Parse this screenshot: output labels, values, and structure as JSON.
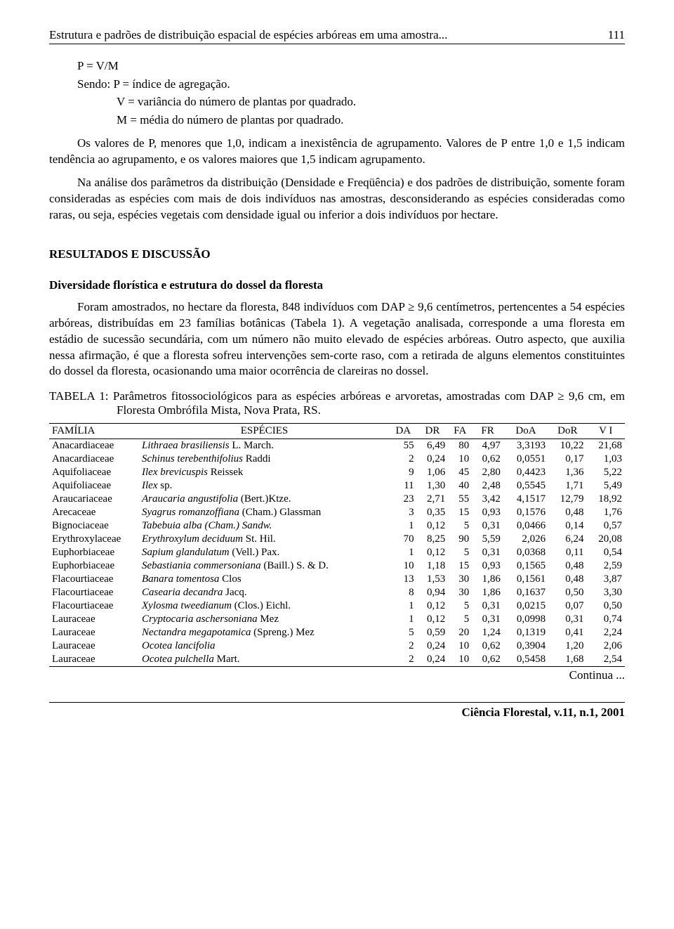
{
  "header": {
    "running_title": "Estrutura e padrões de distribuição espacial de espécies arbóreas em uma amostra...",
    "page_number": "111"
  },
  "formula": {
    "line1": "P = V/M",
    "line2": "Sendo: P = índice de agregação.",
    "line3": "V = variância do número de plantas por quadrado.",
    "line4": "M = média do número de plantas por quadrado."
  },
  "para1": "Os valores de P, menores que 1,0, indicam a inexistência de agrupamento. Valores de P entre 1,0 e 1,5 indicam tendência ao agrupamento, e os valores maiores que 1,5 indicam agrupamento.",
  "para2": "Na análise dos parâmetros da distribuição (Densidade e Freqüência) e dos padrões de distribuição, somente foram consideradas as espécies com mais de dois indivíduos nas amostras, desconsiderando as espécies consideradas como raras, ou seja, espécies vegetais com densidade igual ou inferior a dois indivíduos por hectare.",
  "section_heading": "RESULTADOS E DISCUSSÃO",
  "subsection_heading": "Diversidade florística e estrutura do dossel da floresta",
  "para3": "Foram amostrados, no hectare da floresta, 848 indivíduos com DAP ≥ 9,6 centímetros, pertencentes a 54 espécies arbóreas, distribuídas em 23 famílias botânicas (Tabela 1). A vegetação analisada, corresponde a uma floresta em estádio de sucessão secundária, com um número não muito elevado de espécies arbóreas. Outro aspecto, que auxilia nessa afirmação, é que a floresta sofreu intervenções sem-corte raso, com a retirada de alguns elementos constituintes do dossel da floresta, ocasionando uma maior ocorrência de clareiras no dossel.",
  "table_caption": "TABELA 1: Parâmetros fitossociológicos para as espécies arbóreas e arvoretas, amostradas com DAP ≥ 9,6 cm, em Floresta Ombrófila Mista, Nova Prata, RS.",
  "table": {
    "columns": [
      "FAMÍLIA",
      "ESPÉCIES",
      "DA",
      "DR",
      "FA",
      "FR",
      "DoA",
      "DoR",
      "V I"
    ],
    "col_align": [
      "left",
      "left",
      "right",
      "right",
      "right",
      "right",
      "right",
      "right",
      "right"
    ],
    "rows": [
      {
        "family": "Anacardiaceae",
        "species_italic": "Lithraea brasiliensis",
        "species_auth": " L. March.",
        "DA": "55",
        "DR": "6,49",
        "FA": "80",
        "FR": "4,97",
        "DoA": "3,3193",
        "DoR": "10,22",
        "VI": "21,68"
      },
      {
        "family": "Anacardiaceae",
        "species_italic": "Schinus terebenthifolius",
        "species_auth": " Raddi",
        "DA": "2",
        "DR": "0,24",
        "FA": "10",
        "FR": "0,62",
        "DoA": "0,0551",
        "DoR": "0,17",
        "VI": "1,03"
      },
      {
        "family": "Aquifoliaceae",
        "species_italic": "Ilex brevicuspis",
        "species_auth": " Reissek",
        "DA": "9",
        "DR": "1,06",
        "FA": "45",
        "FR": "2,80",
        "DoA": "0,4423",
        "DoR": "1,36",
        "VI": "5,22"
      },
      {
        "family": "Aquifoliaceae",
        "species_italic": "Ilex",
        "species_auth": " sp.",
        "DA": "11",
        "DR": "1,30",
        "FA": "40",
        "FR": "2,48",
        "DoA": "0,5545",
        "DoR": "1,71",
        "VI": "5,49"
      },
      {
        "family": "Araucariaceae",
        "species_italic": "Araucaria angustifolia",
        "species_auth": " (Bert.)Ktze.",
        "DA": "23",
        "DR": "2,71",
        "FA": "55",
        "FR": "3,42",
        "DoA": "4,1517",
        "DoR": "12,79",
        "VI": "18,92"
      },
      {
        "family": "Arecaceae",
        "species_italic": "Syagrus romanzoffiana",
        "species_auth": " (Cham.) Glassman",
        "DA": "3",
        "DR": "0,35",
        "FA": "15",
        "FR": "0,93",
        "DoA": "0,1576",
        "DoR": "0,48",
        "VI": "1,76"
      },
      {
        "family": "Bignociaceae",
        "species_italic": "Tabebuia alba (Cham.) Sandw.",
        "species_auth": "",
        "DA": "1",
        "DR": "0,12",
        "FA": "5",
        "FR": "0,31",
        "DoA": "0,0466",
        "DoR": "0,14",
        "VI": "0,57"
      },
      {
        "family": "Erythroxylaceae",
        "species_italic": "Erythroxylum deciduum",
        "species_auth": " St. Hil.",
        "DA": "70",
        "DR": "8,25",
        "FA": "90",
        "FR": "5,59",
        "DoA": "2,026",
        "DoR": "6,24",
        "VI": "20,08"
      },
      {
        "family": "Euphorbiaceae",
        "species_italic": "Sapium glandulatum",
        "species_auth": " (Vell.) Pax.",
        "DA": "1",
        "DR": "0,12",
        "FA": "5",
        "FR": "0,31",
        "DoA": "0,0368",
        "DoR": "0,11",
        "VI": "0,54"
      },
      {
        "family": "Euphorbiaceae",
        "species_italic": "Sebastiania commersoniana",
        "species_auth": " (Baill.) S. & D.",
        "DA": "10",
        "DR": "1,18",
        "FA": "15",
        "FR": "0,93",
        "DoA": "0,1565",
        "DoR": "0,48",
        "VI": "2,59"
      },
      {
        "family": "Flacourtiaceae",
        "species_italic": "Banara tomentosa",
        "species_auth": " Clos",
        "DA": "13",
        "DR": "1,53",
        "FA": "30",
        "FR": "1,86",
        "DoA": "0,1561",
        "DoR": "0,48",
        "VI": "3,87"
      },
      {
        "family": "Flacourtiaceae",
        "species_italic": "Casearia decandra",
        "species_auth": " Jacq.",
        "DA": "8",
        "DR": "0,94",
        "FA": "30",
        "FR": "1,86",
        "DoA": "0,1637",
        "DoR": "0,50",
        "VI": "3,30"
      },
      {
        "family": "Flacourtiaceae",
        "species_italic": "Xylosma tweedianum",
        "species_auth": " (Clos.) Eichl.",
        "DA": "1",
        "DR": "0,12",
        "FA": "5",
        "FR": "0,31",
        "DoA": "0,0215",
        "DoR": "0,07",
        "VI": "0,50"
      },
      {
        "family": "Lauraceae",
        "species_italic": "Cryptocaria aschersoniana",
        "species_auth": " Mez",
        "DA": "1",
        "DR": "0,12",
        "FA": "5",
        "FR": "0,31",
        "DoA": "0,0998",
        "DoR": "0,31",
        "VI": "0,74"
      },
      {
        "family": "Lauraceae",
        "species_italic": "Nectandra megapotamica",
        "species_auth": " (Spreng.) Mez",
        "DA": "5",
        "DR": "0,59",
        "FA": "20",
        "FR": "1,24",
        "DoA": "0,1319",
        "DoR": "0,41",
        "VI": "2,24"
      },
      {
        "family": "Lauraceae",
        "species_italic": "Ocotea lancifolia",
        "species_auth": "",
        "DA": "2",
        "DR": "0,24",
        "FA": "10",
        "FR": "0,62",
        "DoA": "0,3904",
        "DoR": "1,20",
        "VI": "2,06"
      },
      {
        "family": "Lauraceae",
        "species_italic": "Ocotea pulchella",
        "species_auth": " Mart.",
        "DA": "2",
        "DR": "0,24",
        "FA": "10",
        "FR": "0,62",
        "DoA": "0,5458",
        "DoR": "1,68",
        "VI": "2,54"
      }
    ]
  },
  "continua": "Continua ...",
  "footer": "Ciência Florestal, v.11, n.1, 2001"
}
